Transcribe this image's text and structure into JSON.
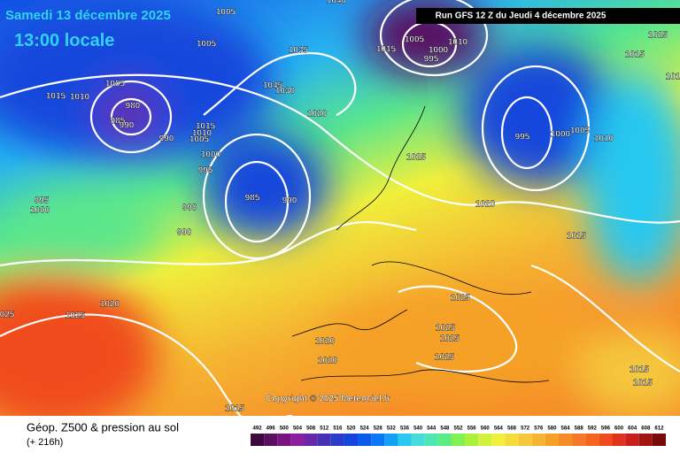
{
  "header": {
    "date": "Samedi 13 décembre 2025",
    "time": "13:00 locale",
    "run": "Run GFS 12 Z du Jeudi 4 décembre 2025"
  },
  "copyright": "Copyright © 2025 Meteociel.fr",
  "footer": {
    "title": "Géop. Z500 & pression au sol",
    "subtitle": "(+ 216h)"
  },
  "colorbar": {
    "labels": [
      "492",
      "496",
      "500",
      "504",
      "508",
      "512",
      "516",
      "520",
      "524",
      "528",
      "532",
      "536",
      "540",
      "544",
      "548",
      "552",
      "556",
      "560",
      "564",
      "568",
      "572",
      "576",
      "580",
      "584",
      "588",
      "592",
      "596",
      "600",
      "604",
      "608",
      "612"
    ],
    "colors": [
      "#3c0a3c",
      "#5a1060",
      "#781480",
      "#8c1ea0",
      "#6a28a8",
      "#4632b4",
      "#2a3cc8",
      "#1446dc",
      "#0a5aeb",
      "#0a78f5",
      "#14a0f5",
      "#28c8f0",
      "#46dcdc",
      "#50e6b4",
      "#5aeb82",
      "#82f050",
      "#aaf03c",
      "#d2f03c",
      "#f0f03c",
      "#f5dc3c",
      "#f5c83c",
      "#f5b432",
      "#f5a028",
      "#f58c28",
      "#f57828",
      "#f5641e",
      "#f04b1e",
      "#e1321e",
      "#c81e1e",
      "#a01414",
      "#780a0a"
    ]
  },
  "isobars": [
    "1005",
    "1040",
    "1005",
    "1015",
    "1005",
    "1000",
    "995",
    "1010",
    "1035",
    "1045",
    "1030",
    "1005",
    "1015",
    "1010",
    "980",
    "985",
    "990",
    "990",
    "1015",
    "1010",
    "1005",
    "1020",
    "1000",
    "995",
    "1025",
    "995",
    "1000",
    "1005",
    "1010",
    "995",
    "1000",
    "985",
    "990",
    "990",
    "990",
    "1020",
    "1015",
    "1025",
    "1015",
    "101",
    "1025",
    "1025",
    "1025",
    "1025",
    "1020",
    "1025",
    "025",
    "1020",
    "1020",
    "1015",
    "1015",
    "1015"
  ]
}
